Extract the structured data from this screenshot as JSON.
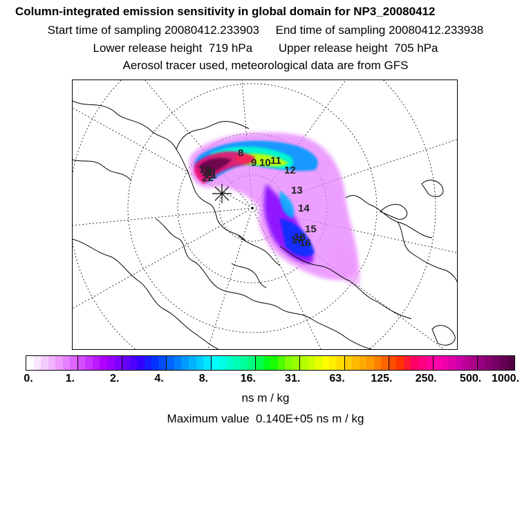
{
  "header": {
    "title": "Column-integrated emission sensitivity in global domain for NP3_20080412",
    "sampling_line": "Start time of sampling 20080412.233903     End time of sampling 20080412.233938",
    "release_line": "Lower release height  719 hPa        Upper release height  705 hPa",
    "tracer_line": "Aerosol tracer used, meteorological data are from GFS"
  },
  "map": {
    "track_numbers": [
      "8",
      "9",
      "10",
      "11",
      "12",
      "13",
      "14",
      "15",
      "16",
      "17",
      "18",
      "19",
      "20",
      "21",
      "22"
    ],
    "colors": {
      "land_outline": "#000000",
      "grid": "#000000",
      "frame": "#000000"
    }
  },
  "colorbar": {
    "labels": [
      "0.",
      "1.",
      "2.",
      "4.",
      "8.",
      "16.",
      "31.",
      "63.",
      "125.",
      "250.",
      "500.",
      "1000."
    ],
    "colors": [
      "#ffffff",
      "#fbe6ff",
      "#f6ccff",
      "#f2b3ff",
      "#ee99ff",
      "#e680ff",
      "#dd66ff",
      "#d44dff",
      "#c833ff",
      "#bb1aff",
      "#ad00ff",
      "#9900ff",
      "#8000ff",
      "#6600ff",
      "#4d00ff",
      "#3300ff",
      "#1a1aff",
      "#0033ff",
      "#004dff",
      "#0066ff",
      "#0080ff",
      "#0099ff",
      "#00b3ff",
      "#00ccff",
      "#00e6ff",
      "#00ffff",
      "#00ffe6",
      "#00ffcc",
      "#00ffb3",
      "#00ff99",
      "#00ff80",
      "#00ff4d",
      "#00ff1a",
      "#1aff00",
      "#4dff00",
      "#80ff00",
      "#99ff00",
      "#b3ff00",
      "#ccff00",
      "#e6ff00",
      "#ffff00",
      "#ffee00",
      "#ffdd00",
      "#ffcc00",
      "#ffbb00",
      "#ffaa00",
      "#ff9900",
      "#ff8000",
      "#ff6600",
      "#ff4d00",
      "#ff3300",
      "#ff1a33",
      "#ff0066",
      "#ff0080",
      "#ff0099",
      "#ff00aa",
      "#ee00aa",
      "#dd00aa",
      "#cc00aa",
      "#bb0099",
      "#aa0088",
      "#990080",
      "#880070",
      "#770066",
      "#660055",
      "#550044"
    ],
    "unit": "ns m / kg",
    "maximum": "Maximum value  0.140E+05 ns m / kg"
  }
}
